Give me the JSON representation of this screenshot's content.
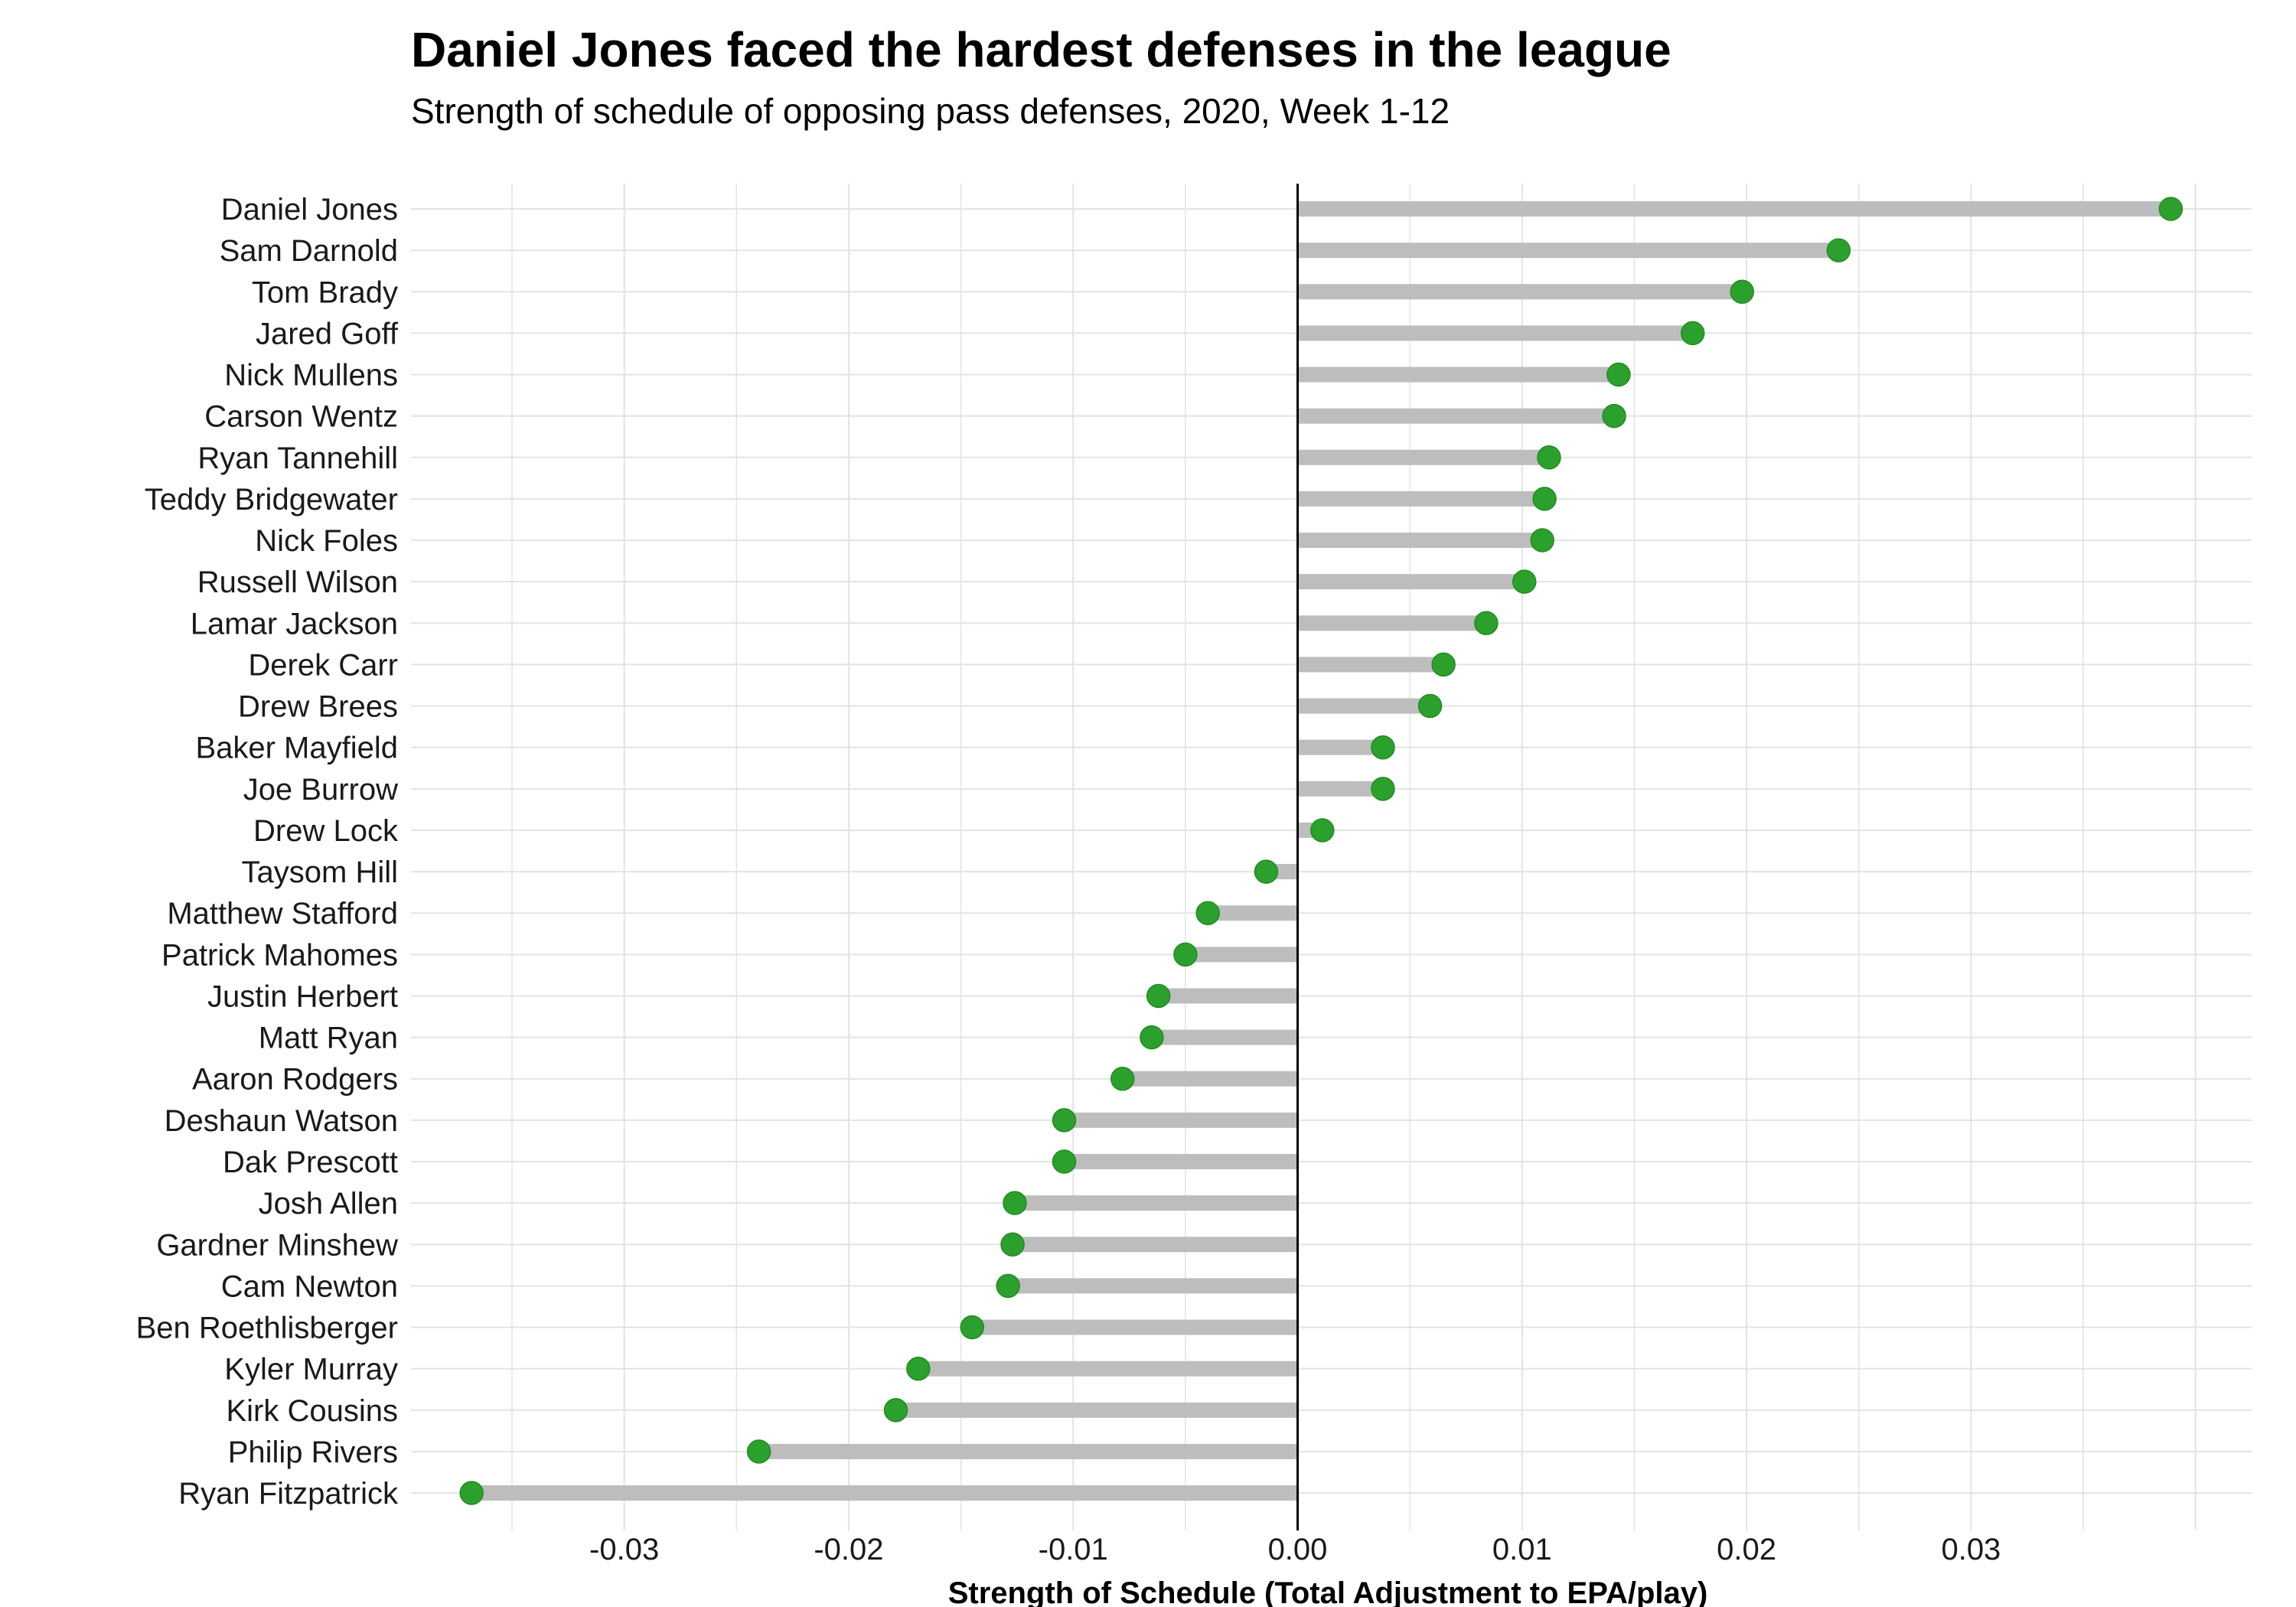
{
  "header": {
    "title": "Daniel Jones faced the hardest defenses in the league",
    "subtitle": "Strength of schedule of opposing pass defenses, 2020, Week 1-12"
  },
  "colors": {
    "dot": "#2ca02c",
    "bar": "#bdbdbd",
    "grid": "#e3e3e3",
    "zero_line": "#000000"
  },
  "chart_data": {
    "type": "lollipop",
    "title": "Daniel Jones faced the hardest defenses in the league",
    "subtitle": "Strength of schedule of opposing pass defenses, 2020, Week 1-12",
    "xlabel": "Strength of Schedule (Total Adjustment to EPA/play)",
    "ylabel": "",
    "xlim": [
      -0.0395,
      0.0425
    ],
    "xticks": [
      -0.03,
      -0.02,
      -0.01,
      0.0,
      0.01,
      0.02,
      0.03
    ],
    "xtick_labels": [
      "-0.03",
      "-0.02",
      "-0.01",
      "0.00",
      "0.01",
      "0.02",
      "0.03"
    ],
    "grid": true,
    "legend": "none",
    "categories": [
      "Daniel Jones",
      "Sam Darnold",
      "Tom Brady",
      "Jared Goff",
      "Nick Mullens",
      "Carson Wentz",
      "Ryan Tannehill",
      "Teddy Bridgewater",
      "Nick Foles",
      "Russell Wilson",
      "Lamar Jackson",
      "Derek Carr",
      "Drew Brees",
      "Baker Mayfield",
      "Joe Burrow",
      "Drew Lock",
      "Taysom Hill",
      "Matthew Stafford",
      "Patrick Mahomes",
      "Justin Herbert",
      "Matt Ryan",
      "Aaron Rodgers",
      "Deshaun Watson",
      "Dak Prescott",
      "Josh Allen",
      "Gardner Minshew",
      "Cam Newton",
      "Ben Roethlisberger",
      "Kyler Murray",
      "Kirk Cousins",
      "Philip Rivers",
      "Ryan Fitzpatrick"
    ],
    "values": [
      0.0389,
      0.0241,
      0.0198,
      0.0176,
      0.0143,
      0.0141,
      0.0112,
      0.011,
      0.0109,
      0.0101,
      0.0084,
      0.0065,
      0.0059,
      0.0038,
      0.0038,
      0.0011,
      -0.0014,
      -0.004,
      -0.005,
      -0.0062,
      -0.0065,
      -0.0078,
      -0.0104,
      -0.0104,
      -0.0126,
      -0.0127,
      -0.0129,
      -0.0145,
      -0.0169,
      -0.0179,
      -0.024,
      -0.0368
    ]
  }
}
